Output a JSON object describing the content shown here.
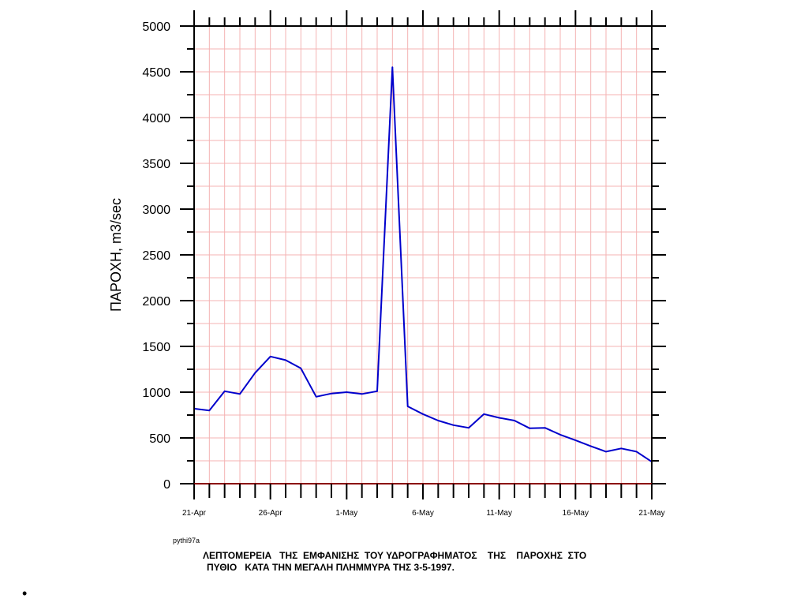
{
  "chart_data": {
    "type": "line",
    "ylabel": "ΠΑΡΟΧΗ, m3/sec",
    "xlabel": "",
    "ylim": [
      0,
      5000
    ],
    "yticks": [
      0,
      500,
      1000,
      1500,
      2000,
      2500,
      3000,
      3500,
      4000,
      4500,
      5000
    ],
    "xlim": [
      "21-Apr",
      "21-May"
    ],
    "xticks": [
      "21-Apr",
      "26-Apr",
      "1-May",
      "6-May",
      "11-May",
      "16-May",
      "21-May"
    ],
    "grid": true,
    "series": [
      {
        "color": "#0000cc",
        "x": [
          "21-Apr",
          "22-Apr",
          "23-Apr",
          "24-Apr",
          "25-Apr",
          "26-Apr",
          "27-Apr",
          "28-Apr",
          "29-Apr",
          "30-Apr",
          "1-May",
          "2-May",
          "3-May",
          "4-May",
          "5-May",
          "6-May",
          "7-May",
          "8-May",
          "9-May",
          "10-May",
          "11-May",
          "12-May",
          "13-May",
          "14-May",
          "15-May",
          "16-May",
          "17-May",
          "18-May",
          "19-May",
          "20-May",
          "21-May"
        ],
        "values": [
          820,
          800,
          1010,
          980,
          1210,
          1390,
          1350,
          1260,
          950,
          985,
          1000,
          980,
          1010,
          4550,
          845,
          760,
          690,
          640,
          610,
          760,
          720,
          690,
          605,
          610,
          535,
          475,
          410,
          350,
          385,
          350,
          240
        ]
      }
    ]
  },
  "source_tag": "pythi97a",
  "caption": {
    "line1": "ΛΕΠΤΟΜΕΡΕΙΑ   ΤΗΣ  ΕΜΦΑΝΙΣΗΣ  ΤΟΥ ΥΔΡΟΓΡΑΦΗΜΑΤΟΣ    ΤΗΣ    ΠΑΡΟΧΗΣ  ΣΤΟ",
    "line2": "ΠΥΘΙΟ   ΚΑΤΑ ΤΗΝ ΜΕΓΑΛΗ ΠΛΗΜΜΥΡΑ ΤΗΣ 3-5-1997."
  },
  "bullet": "•",
  "colors": {
    "line": "#0000cc",
    "grid": "#f4b3b3",
    "axis": "#000000",
    "zero_line": "#8b0000"
  }
}
